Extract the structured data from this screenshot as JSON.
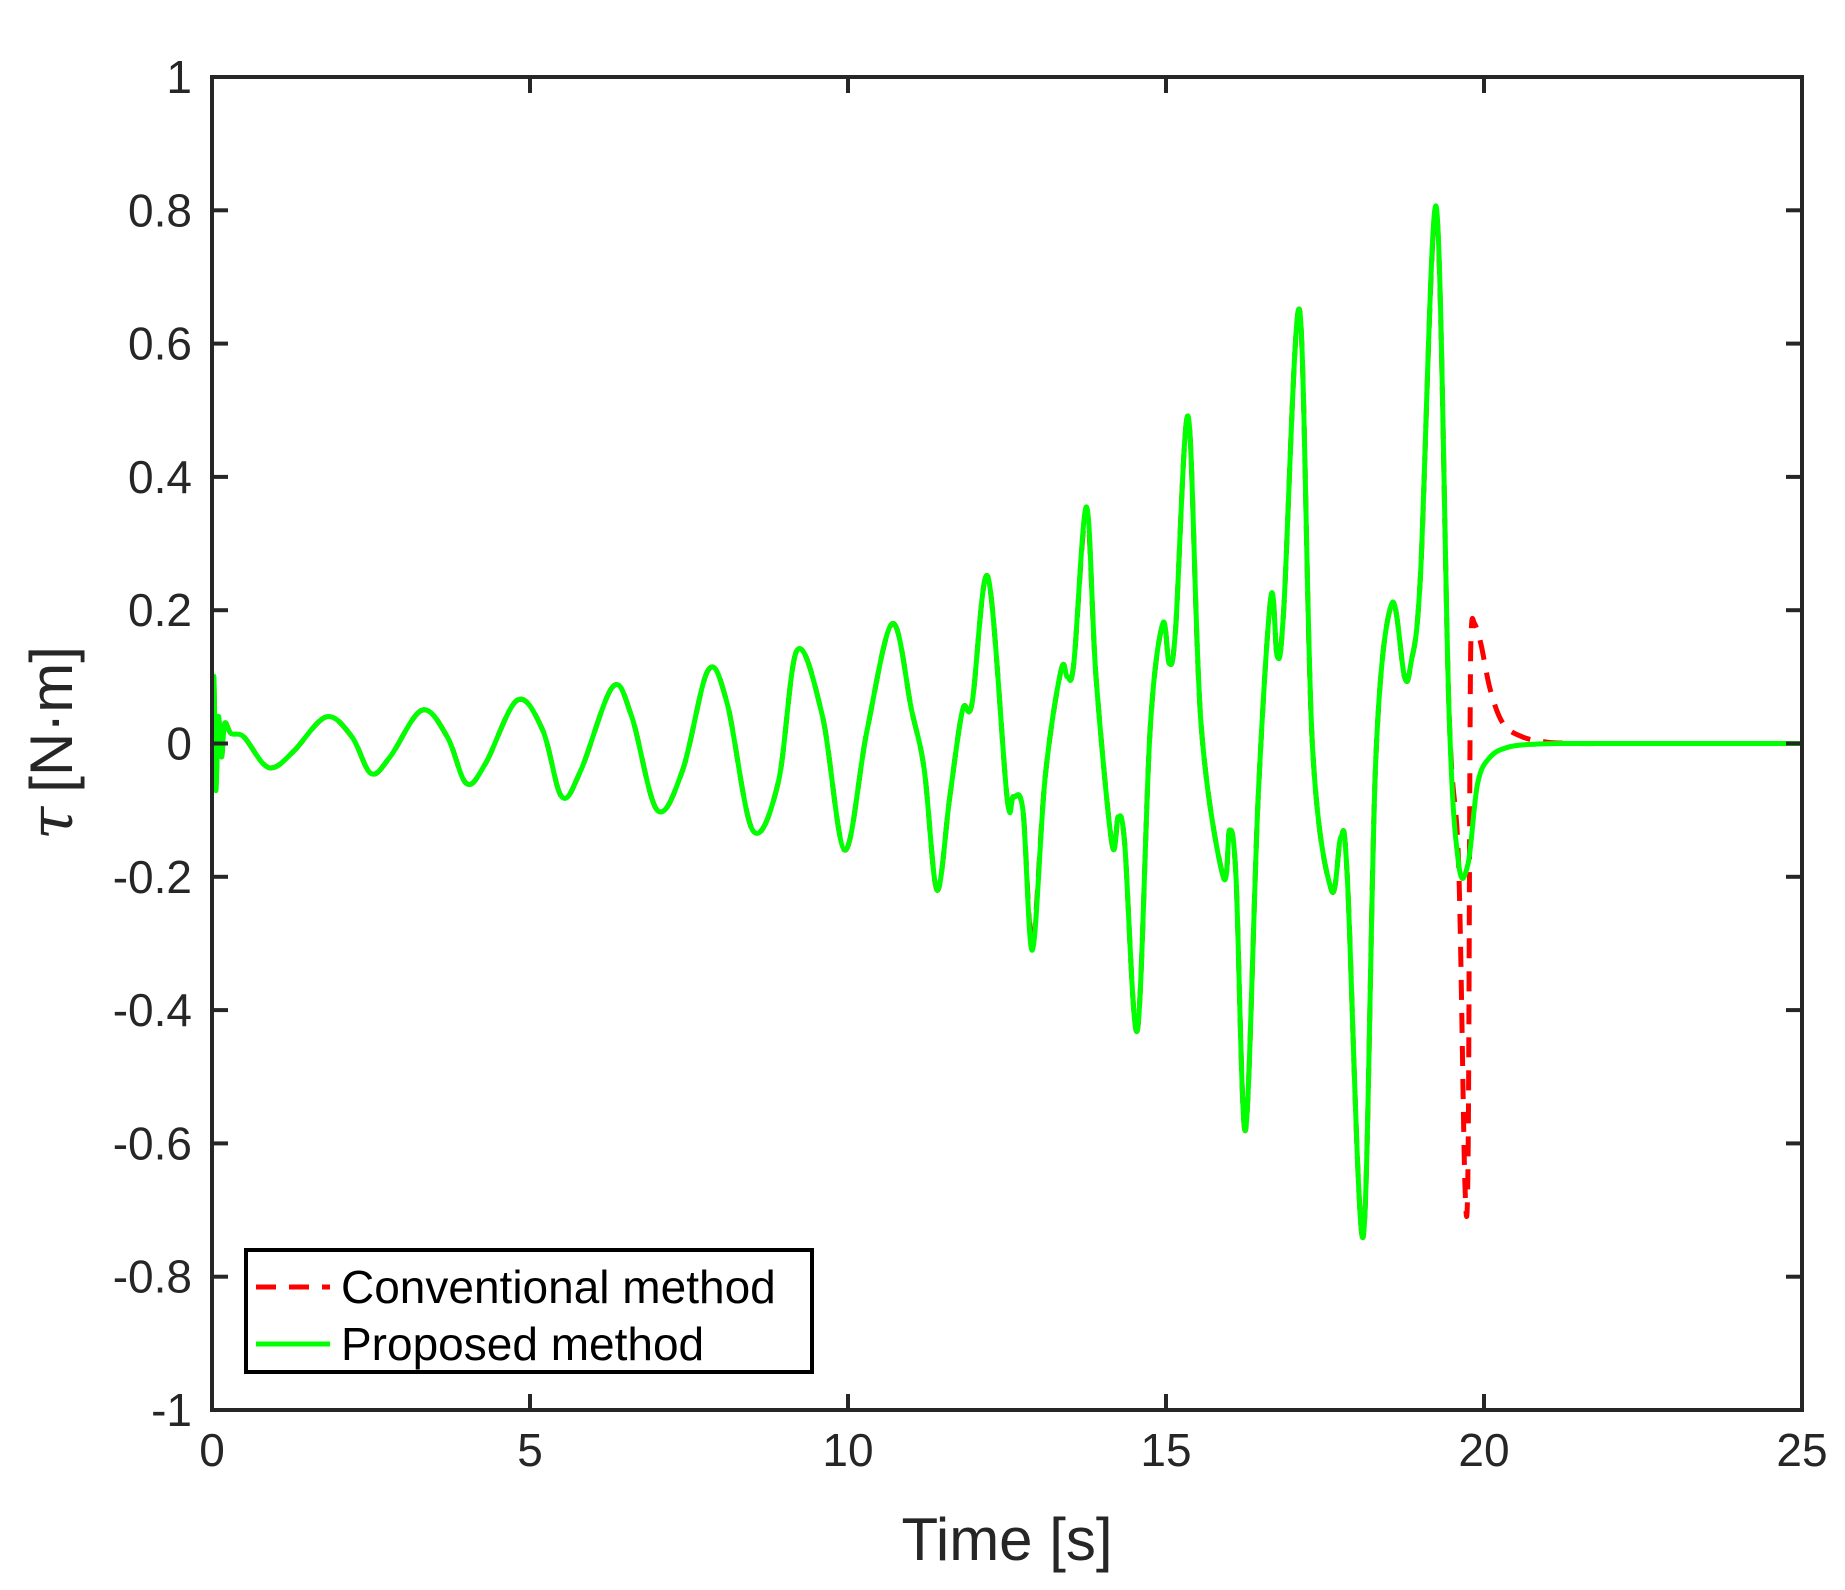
{
  "chart_data": {
    "type": "line",
    "title": "",
    "xlabel": "Time [s]",
    "ylabel_symbol": "τ",
    "ylabel_units": "[N·m]",
    "xlim": [
      0,
      25
    ],
    "ylim": [
      -1,
      1
    ],
    "xticks": [
      0,
      5,
      10,
      15,
      20,
      25
    ],
    "xtick_labels": [
      "0",
      "5",
      "10",
      "15",
      "20",
      "25"
    ],
    "yticks": [
      -1,
      -0.8,
      -0.6,
      -0.4,
      -0.2,
      0,
      0.2,
      0.4,
      0.6,
      0.8,
      1
    ],
    "ytick_labels": [
      "-1",
      "-0.8",
      "-0.6",
      "-0.4",
      "-0.2",
      "0",
      "0.2",
      "0.4",
      "0.6",
      "0.8",
      "1"
    ],
    "grid": false,
    "legend_position": "bottom-left",
    "series": [
      {
        "name": "Conventional method",
        "color": "#ff0000",
        "style": "dashed",
        "x": [
          0,
          0.03,
          0.06,
          0.1,
          0.15,
          0.2,
          0.3,
          0.5,
          0.8,
          1.0,
          1.3,
          1.8,
          2.2,
          2.5,
          2.8,
          3.3,
          3.7,
          4.0,
          4.3,
          4.8,
          5.2,
          5.5,
          5.8,
          6.3,
          6.6,
          7.0,
          7.4,
          7.8,
          8.1,
          8.5,
          8.9,
          9.2,
          9.6,
          9.95,
          10.3,
          10.7,
          11.0,
          11.2,
          11.4,
          11.6,
          11.8,
          11.95,
          12.2,
          12.5,
          12.6,
          12.75,
          12.9,
          13.1,
          13.35,
          13.45,
          13.55,
          13.75,
          13.9,
          14.15,
          14.25,
          14.35,
          14.55,
          14.75,
          14.95,
          15.05,
          15.15,
          15.35,
          15.55,
          15.9,
          16.0,
          16.1,
          16.25,
          16.45,
          16.65,
          16.75,
          16.85,
          17.1,
          17.3,
          17.6,
          17.75,
          17.85,
          18.1,
          18.3,
          18.55,
          18.75,
          18.85,
          19.0,
          19.25,
          19.45,
          19.6,
          19.7,
          19.75,
          19.78,
          19.8,
          19.85,
          19.95,
          20.1,
          20.3,
          20.6,
          21.0,
          21.5,
          22.0,
          23,
          25
        ],
        "y": [
          0,
          0.09,
          -0.06,
          0.04,
          -0.02,
          0.03,
          0.015,
          0.01,
          -0.03,
          -0.035,
          -0.01,
          0.04,
          0.01,
          -0.045,
          -0.02,
          0.05,
          0.01,
          -0.06,
          -0.03,
          0.065,
          0.02,
          -0.08,
          -0.04,
          0.085,
          0.04,
          -0.1,
          -0.04,
          0.11,
          0.06,
          -0.13,
          -0.06,
          0.14,
          0.04,
          -0.16,
          0.02,
          0.18,
          0.05,
          -0.04,
          -0.22,
          -0.08,
          0.05,
          0.06,
          0.25,
          -0.08,
          -0.08,
          -0.1,
          -0.3,
          -0.05,
          0.11,
          0.1,
          0.12,
          0.35,
          0.1,
          -0.15,
          -0.11,
          -0.15,
          -0.43,
          0.02,
          0.18,
          0.12,
          0.17,
          0.49,
          0.03,
          -0.2,
          -0.13,
          -0.2,
          -0.58,
          -0.08,
          0.22,
          0.13,
          0.2,
          0.65,
          0.0,
          -0.22,
          -0.14,
          -0.2,
          -0.74,
          -0.02,
          0.21,
          0.1,
          0.12,
          0.25,
          0.8,
          0.05,
          -0.18,
          -0.66,
          -0.62,
          0.0,
          0.17,
          0.18,
          0.15,
          0.08,
          0.03,
          0.01,
          0.002,
          0.0,
          0.0,
          0.0,
          0.0
        ]
      },
      {
        "name": "Proposed method",
        "color": "#00ff00",
        "style": "solid",
        "x": [
          0,
          0.03,
          0.06,
          0.1,
          0.15,
          0.2,
          0.3,
          0.5,
          0.8,
          1.0,
          1.3,
          1.8,
          2.2,
          2.5,
          2.8,
          3.3,
          3.7,
          4.0,
          4.3,
          4.8,
          5.2,
          5.5,
          5.8,
          6.3,
          6.6,
          7.0,
          7.4,
          7.8,
          8.1,
          8.5,
          8.9,
          9.2,
          9.6,
          9.95,
          10.3,
          10.7,
          11.0,
          11.2,
          11.4,
          11.6,
          11.8,
          11.95,
          12.2,
          12.5,
          12.6,
          12.75,
          12.9,
          13.1,
          13.35,
          13.45,
          13.55,
          13.75,
          13.9,
          14.15,
          14.25,
          14.35,
          14.55,
          14.75,
          14.95,
          15.05,
          15.15,
          15.35,
          15.55,
          15.9,
          16.0,
          16.1,
          16.25,
          16.45,
          16.65,
          16.75,
          16.85,
          17.1,
          17.3,
          17.6,
          17.75,
          17.85,
          18.1,
          18.3,
          18.55,
          18.75,
          18.85,
          19.0,
          19.25,
          19.45,
          19.6,
          19.75,
          19.9,
          20.1,
          20.4,
          20.8,
          21.3,
          22.0,
          23,
          25
        ],
        "y": [
          0,
          0.1,
          -0.07,
          0.04,
          -0.02,
          0.03,
          0.015,
          0.01,
          -0.03,
          -0.035,
          -0.01,
          0.04,
          0.01,
          -0.045,
          -0.02,
          0.05,
          0.01,
          -0.06,
          -0.03,
          0.065,
          0.02,
          -0.08,
          -0.04,
          0.085,
          0.04,
          -0.1,
          -0.04,
          0.11,
          0.06,
          -0.13,
          -0.06,
          0.14,
          0.04,
          -0.16,
          0.02,
          0.18,
          0.05,
          -0.04,
          -0.22,
          -0.08,
          0.05,
          0.06,
          0.25,
          -0.08,
          -0.08,
          -0.1,
          -0.31,
          -0.05,
          0.11,
          0.1,
          0.12,
          0.355,
          0.1,
          -0.15,
          -0.11,
          -0.15,
          -0.43,
          0.02,
          0.18,
          0.12,
          0.17,
          0.49,
          0.03,
          -0.2,
          -0.13,
          -0.2,
          -0.58,
          -0.08,
          0.22,
          0.13,
          0.2,
          0.65,
          0.0,
          -0.22,
          -0.14,
          -0.2,
          -0.74,
          -0.02,
          0.21,
          0.1,
          0.12,
          0.25,
          0.805,
          0.05,
          -0.18,
          -0.18,
          -0.06,
          -0.02,
          -0.005,
          -0.001,
          0.0,
          0.0,
          0.0,
          0.0
        ]
      }
    ]
  }
}
